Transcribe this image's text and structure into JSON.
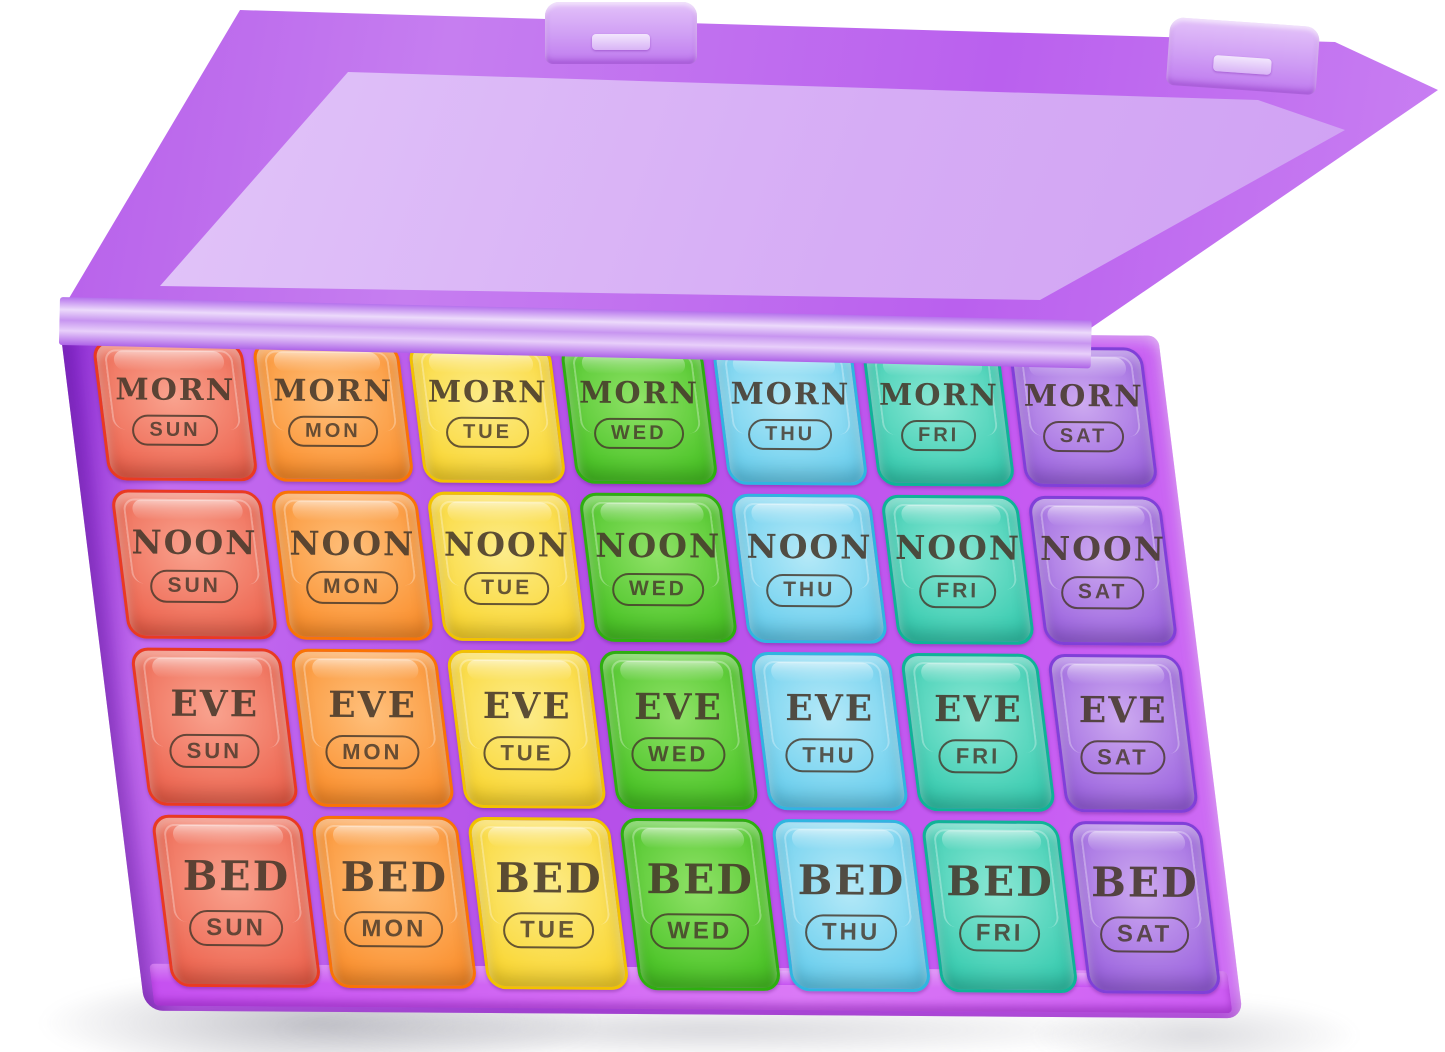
{
  "grid": {
    "periods": [
      "MORN",
      "NOON",
      "EVE",
      "BED"
    ],
    "days": [
      "SUN",
      "MON",
      "TUE",
      "WED",
      "THU",
      "FRI",
      "SAT"
    ]
  },
  "palette": {
    "ink": "#46382b",
    "case_face": "#c67ef0",
    "case_panel": "#d6acf5",
    "case_deep": "#a944e8",
    "case_rim": "#c650f0",
    "days": [
      {
        "day": "SUN",
        "edge": "#e93a22",
        "mid": "#ee6a55",
        "light": "#f9a38f"
      },
      {
        "day": "MON",
        "edge": "#f97306",
        "mid": "#fb9435",
        "light": "#fec07c"
      },
      {
        "day": "TUE",
        "edge": "#f2c200",
        "mid": "#fad839",
        "light": "#fcec8a"
      },
      {
        "day": "WED",
        "edge": "#2eae10",
        "mid": "#4ec52a",
        "light": "#90e268"
      },
      {
        "day": "THU",
        "edge": "#30b5e0",
        "mid": "#6fd0ee",
        "light": "#b5e9f8"
      },
      {
        "day": "FRI",
        "edge": "#0fb397",
        "mid": "#3ecdb2",
        "light": "#8ce8d5"
      },
      {
        "day": "SAT",
        "edge": "#8040d8",
        "mid": "#a06ae0",
        "light": "#cdaaf0"
      }
    ]
  }
}
